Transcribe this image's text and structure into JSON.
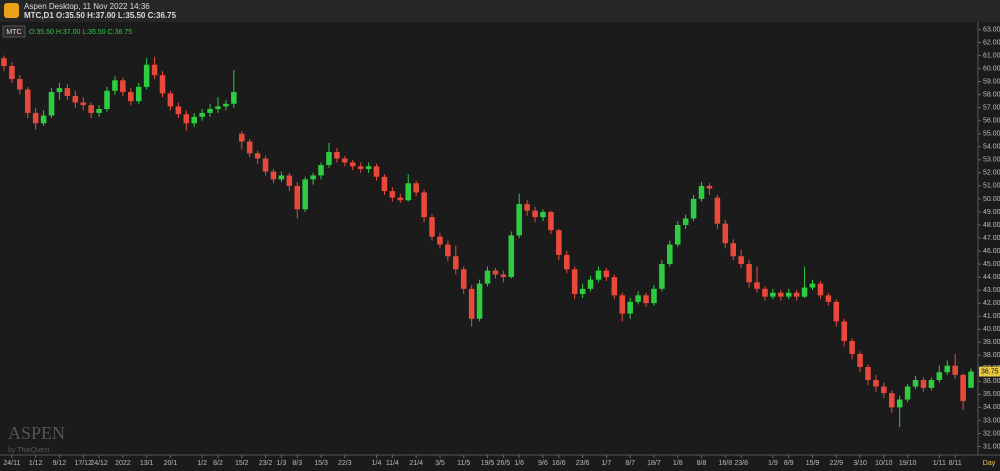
{
  "window": {
    "title": "Aspen Desktop, 11 Nov 2022 14:36",
    "info": "MTC,D1 O:35.50 H:37.00 L:35.50 C:36.75"
  },
  "chart_data": {
    "type": "candlestick",
    "symbol": "MTC",
    "ohlc_label": "O:35.50 H:37.00 L:35.50 C:36.75",
    "categories": [
      null,
      "24/11",
      null,
      null,
      "1/12",
      null,
      null,
      "9/12",
      null,
      null,
      "17/12",
      null,
      "24/12",
      null,
      null,
      "2022",
      null,
      null,
      "13/1",
      null,
      null,
      "20/1",
      null,
      null,
      null,
      "1/2",
      null,
      "8/2",
      null,
      null,
      "15/2",
      null,
      null,
      "23/2",
      null,
      "1/3",
      null,
      "8/3",
      null,
      null,
      "15/3",
      null,
      null,
      "22/3",
      null,
      null,
      null,
      "1/4",
      null,
      "11/4",
      null,
      null,
      "21/4",
      null,
      null,
      "3/5",
      null,
      null,
      "11/5",
      null,
      null,
      "19/5",
      null,
      "26/5",
      null,
      "1/6",
      null,
      null,
      "9/6",
      null,
      "16/6",
      null,
      null,
      "23/6",
      null,
      null,
      "1/7",
      null,
      null,
      "8/7",
      null,
      null,
      "18/7",
      null,
      null,
      "1/8",
      null,
      null,
      "8/8",
      null,
      null,
      "16/8",
      null,
      "23/8",
      null,
      null,
      null,
      "1/9",
      null,
      "8/9",
      null,
      null,
      "15/9",
      null,
      null,
      "22/9",
      null,
      null,
      "3/10",
      null,
      null,
      "10/10",
      null,
      null,
      "19/10",
      null,
      null,
      null,
      "1/11",
      null,
      "8/11",
      null,
      null
    ],
    "candles": [
      [
        60.8,
        61,
        59.8,
        60.2
      ],
      [
        60.2,
        60.5,
        58.9,
        59.2
      ],
      [
        59.2,
        59.5,
        58,
        58.4
      ],
      [
        58.4,
        58.6,
        56.2,
        56.6
      ],
      [
        56.6,
        57,
        55.3,
        55.8
      ],
      [
        55.8,
        56.8,
        55.6,
        56.4
      ],
      [
        56.4,
        58.5,
        56.2,
        58.2
      ],
      [
        58.2,
        58.9,
        57.6,
        58.5
      ],
      [
        58.5,
        58.8,
        57.6,
        57.9
      ],
      [
        57.9,
        58.3,
        57,
        57.4
      ],
      [
        57.4,
        57.8,
        56.8,
        57.2
      ],
      [
        57.2,
        57.4,
        56.2,
        56.6
      ],
      [
        56.6,
        57.2,
        56.3,
        56.9
      ],
      [
        56.9,
        58.6,
        56.7,
        58.3
      ],
      [
        58.3,
        59.4,
        58,
        59.1
      ],
      [
        59.1,
        59.3,
        57.9,
        58.2
      ],
      [
        58.2,
        58.5,
        57.2,
        57.5
      ],
      [
        57.5,
        58.9,
        57.3,
        58.6
      ],
      [
        58.6,
        60.8,
        58.4,
        60.3
      ],
      [
        60.3,
        60.9,
        59.2,
        59.5
      ],
      [
        59.5,
        59.8,
        57.8,
        58.1
      ],
      [
        58.1,
        58.3,
        56.8,
        57.1
      ],
      [
        57.1,
        57.4,
        56.2,
        56.5
      ],
      [
        56.5,
        56.8,
        55.2,
        55.8
      ],
      [
        55.8,
        56.6,
        55.5,
        56.3
      ],
      [
        56.3,
        56.9,
        56,
        56.6
      ],
      [
        56.6,
        57.3,
        56.3,
        56.9
      ],
      [
        56.9,
        57.8,
        56.6,
        57.1
      ],
      [
        57.1,
        57.6,
        56.8,
        57.3
      ],
      [
        57.3,
        59.9,
        57,
        58.2
      ],
      [
        55,
        55.2,
        53.8,
        54.4
      ],
      [
        54.4,
        54.6,
        53.2,
        53.5
      ],
      [
        53.5,
        53.7,
        52.7,
        53.1
      ],
      [
        53.1,
        53.3,
        51.8,
        52.1
      ],
      [
        52.1,
        52.3,
        51.2,
        51.5
      ],
      [
        51.5,
        52.1,
        51.3,
        51.8
      ],
      [
        51.8,
        52,
        50.6,
        51
      ],
      [
        51,
        51.3,
        48.5,
        49.2
      ],
      [
        49.2,
        51.7,
        49,
        51.5
      ],
      [
        51.5,
        52,
        51.1,
        51.8
      ],
      [
        51.8,
        52.8,
        51.5,
        52.6
      ],
      [
        52.6,
        54.3,
        52.4,
        53.6
      ],
      [
        53.6,
        53.9,
        52.8,
        53.1
      ],
      [
        53.1,
        53.3,
        52.5,
        52.8
      ],
      [
        52.8,
        53,
        52.2,
        52.5
      ],
      [
        52.5,
        52.8,
        52,
        52.3
      ],
      [
        52.3,
        52.8,
        52,
        52.5
      ],
      [
        52.5,
        52.7,
        51.4,
        51.7
      ],
      [
        51.7,
        51.9,
        50.3,
        50.6
      ],
      [
        50.6,
        50.9,
        49.8,
        50.1
      ],
      [
        50.1,
        50.4,
        49.7,
        49.9
      ],
      [
        49.9,
        51.9,
        49.8,
        51.2
      ],
      [
        51.2,
        51.4,
        50.2,
        50.5
      ],
      [
        50.5,
        50.7,
        48.2,
        48.6
      ],
      [
        48.6,
        48.8,
        46.8,
        47.1
      ],
      [
        47.1,
        47.4,
        46.2,
        46.5
      ],
      [
        46.5,
        46.8,
        45.2,
        45.6
      ],
      [
        45.6,
        46.4,
        44.2,
        44.6
      ],
      [
        44.6,
        44.8,
        42.7,
        43.1
      ],
      [
        43.1,
        43.4,
        40.2,
        40.8
      ],
      [
        40.8,
        43.8,
        40.6,
        43.5
      ],
      [
        43.5,
        44.8,
        43.3,
        44.5
      ],
      [
        44.5,
        44.7,
        43.9,
        44.2
      ],
      [
        44.2,
        44.5,
        43.6,
        44
      ],
      [
        44,
        47.5,
        43.9,
        47.2
      ],
      [
        47.2,
        50.4,
        47,
        49.6
      ],
      [
        49.6,
        49.9,
        48.7,
        49.1
      ],
      [
        49.1,
        49.4,
        48.2,
        48.6
      ],
      [
        48.6,
        49.2,
        48.3,
        49
      ],
      [
        49,
        49.1,
        47.3,
        47.6
      ],
      [
        47.6,
        47.7,
        45.3,
        45.7
      ],
      [
        45.7,
        46,
        44.3,
        44.6
      ],
      [
        44.6,
        44.8,
        42.3,
        42.7
      ],
      [
        42.7,
        43.5,
        42.4,
        43.1
      ],
      [
        43.1,
        44.1,
        42.9,
        43.8
      ],
      [
        43.8,
        44.8,
        43.6,
        44.5
      ],
      [
        44.5,
        44.7,
        43.7,
        44
      ],
      [
        44,
        44.2,
        42.3,
        42.6
      ],
      [
        42.6,
        42.8,
        40.6,
        41.2
      ],
      [
        41.2,
        42.4,
        40.8,
        42.1
      ],
      [
        42.1,
        42.9,
        41.9,
        42.6
      ],
      [
        42.6,
        42.8,
        41.7,
        42
      ],
      [
        42,
        43.4,
        41.8,
        43.1
      ],
      [
        43.1,
        45.3,
        42.9,
        45
      ],
      [
        45,
        46.8,
        44.8,
        46.5
      ],
      [
        46.5,
        48.3,
        46.3,
        48
      ],
      [
        48,
        48.8,
        47.7,
        48.5
      ],
      [
        48.5,
        50.3,
        48.3,
        50
      ],
      [
        50,
        51.3,
        49.8,
        51
      ],
      [
        51,
        51.2,
        50.3,
        50.8
      ],
      [
        50.1,
        50.3,
        47.7,
        48.1
      ],
      [
        48.1,
        48.4,
        46.2,
        46.6
      ],
      [
        46.6,
        46.9,
        45.3,
        45.6
      ],
      [
        45.6,
        46.1,
        44.7,
        45
      ],
      [
        45,
        45.3,
        43.2,
        43.6
      ],
      [
        43.6,
        44.8,
        42.8,
        43.1
      ],
      [
        43.1,
        43.3,
        42.2,
        42.5
      ],
      [
        42.5,
        43.1,
        42.3,
        42.8
      ],
      [
        42.8,
        43,
        42.2,
        42.5
      ],
      [
        42.5,
        43.1,
        42.3,
        42.8
      ],
      [
        42.8,
        43,
        42.2,
        42.5
      ],
      [
        42.5,
        44.8,
        42.4,
        43.2
      ],
      [
        43.2,
        43.8,
        43,
        43.5
      ],
      [
        43.5,
        43.7,
        42.3,
        42.6
      ],
      [
        42.6,
        42.8,
        41.8,
        42.1
      ],
      [
        42.1,
        42.3,
        40.2,
        40.6
      ],
      [
        40.6,
        40.8,
        38.7,
        39.1
      ],
      [
        39.1,
        39.3,
        37.7,
        38.1
      ],
      [
        38.1,
        38.3,
        36.7,
        37.1
      ],
      [
        37.1,
        37.3,
        35.7,
        36.1
      ],
      [
        36.1,
        36.5,
        35.2,
        35.6
      ],
      [
        35.6,
        35.9,
        34.7,
        35.1
      ],
      [
        35.1,
        35.3,
        33.6,
        34
      ],
      [
        34,
        34.9,
        32.5,
        34.6
      ],
      [
        34.6,
        35.8,
        34.4,
        35.6
      ],
      [
        35.6,
        36.4,
        35.4,
        36.1
      ],
      [
        36.1,
        36.3,
        35.2,
        35.5
      ],
      [
        35.5,
        36.3,
        35.3,
        36.1
      ],
      [
        36.1,
        37.2,
        35.9,
        36.7
      ],
      [
        36.7,
        37.6,
        36.5,
        37.2
      ],
      [
        37.2,
        38.1,
        36.2,
        36.5
      ],
      [
        36.5,
        36.6,
        33.8,
        34.5
      ],
      [
        35.5,
        37,
        35.5,
        36.75
      ]
    ],
    "up_color": "#2ecc40",
    "down_color": "#e8493a",
    "ylim": [
      30.5,
      63.5
    ],
    "yticks": [
      {
        "value": 31,
        "label": "31.00"
      },
      {
        "value": 32,
        "label": "32.00"
      },
      {
        "value": 33,
        "label": "33.00"
      },
      {
        "value": 34,
        "label": "34.00"
      },
      {
        "value": 35,
        "label": "35.00"
      },
      {
        "value": 36,
        "label": "36.00"
      },
      {
        "value": 37,
        "label": "37.00"
      },
      {
        "value": 38,
        "label": "38.00"
      },
      {
        "value": 39,
        "label": "39.00"
      },
      {
        "value": 40,
        "label": "40.00"
      },
      {
        "value": 41,
        "label": "41.00"
      },
      {
        "value": 42,
        "label": "42.00"
      },
      {
        "value": 43,
        "label": "43.00"
      },
      {
        "value": 44,
        "label": "44.00"
      },
      {
        "value": 45,
        "label": "45.00"
      },
      {
        "value": 46,
        "label": "46.00"
      },
      {
        "value": 47,
        "label": "47.00"
      },
      {
        "value": 48,
        "label": "48.00"
      },
      {
        "value": 49,
        "label": "49.00"
      },
      {
        "value": 50,
        "label": "50.00"
      },
      {
        "value": 51,
        "label": "51.00"
      },
      {
        "value": 52,
        "label": "52.00"
      },
      {
        "value": 53,
        "label": "53.00"
      },
      {
        "value": 54,
        "label": "54.00"
      },
      {
        "value": 55,
        "label": "55.00"
      },
      {
        "value": 56,
        "label": "56.00"
      },
      {
        "value": 57,
        "label": "57.00"
      },
      {
        "value": 58,
        "label": "58.00"
      },
      {
        "value": 59,
        "label": "59.00"
      },
      {
        "value": 60,
        "label": "60.00"
      },
      {
        "value": 61,
        "label": "61.00"
      },
      {
        "value": 62,
        "label": "62.00"
      },
      {
        "value": 63,
        "label": "63.00"
      }
    ],
    "last_price": {
      "value": 36.75,
      "label": "36.75"
    },
    "period_label": "Day",
    "watermark": "ASPEN",
    "watermark_sub": "by ThaiQuest"
  }
}
